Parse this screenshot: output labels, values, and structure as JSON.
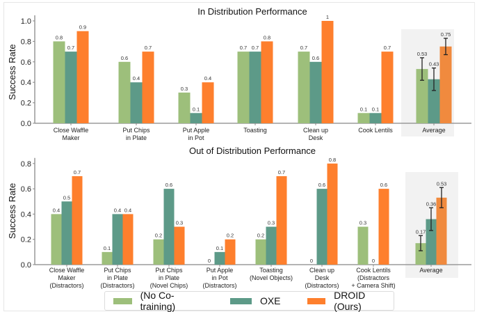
{
  "legend": {
    "items": [
      {
        "label": "(No Co-training)",
        "color": "#9dbf7b"
      },
      {
        "label": "OXE",
        "color": "#5d9a88"
      },
      {
        "label": "DROID (Ours)",
        "color": "#fe7f2d"
      }
    ]
  },
  "chart_data": [
    {
      "type": "bar",
      "title": "In Distribution Performance",
      "xlabel": "",
      "ylabel": "Success Rate",
      "ylim": [
        0,
        1.0
      ],
      "yticks": [
        "0.0",
        "0.2",
        "0.4",
        "0.6",
        "0.8",
        "1.0"
      ],
      "ytick_values": [
        0,
        0.2,
        0.4,
        0.6,
        0.8,
        1.0
      ],
      "grid": false,
      "legend_position": "bottom",
      "categories": [
        [
          "Close Waffle",
          "Maker"
        ],
        [
          "Put Chips",
          "in Plate"
        ],
        [
          "Put Apple",
          "in Pot"
        ],
        [
          "Toasting"
        ],
        [
          "Clean up",
          "Desk"
        ],
        [
          "Cook Lentils"
        ],
        [
          "Average"
        ]
      ],
      "highlight_category": "Average",
      "series": [
        {
          "name": "(No Co-training)",
          "color": "#9dbf7b",
          "values": [
            0.8,
            0.6,
            0.3,
            0.7,
            0.7,
            0.1,
            0.53
          ],
          "labels": [
            "0.8",
            "0.6",
            "0.3",
            "0.7",
            "0.7",
            "0.1",
            "0.53"
          ],
          "error": [
            null,
            null,
            null,
            null,
            null,
            null,
            0.11
          ]
        },
        {
          "name": "OXE",
          "color": "#5d9a88",
          "values": [
            0.7,
            0.4,
            0.1,
            0.7,
            0.6,
            0.1,
            0.43
          ],
          "labels": [
            "0.7",
            "0.4",
            "0.1",
            "0.7",
            "0.6",
            "0.1",
            "0.43"
          ],
          "error": [
            null,
            null,
            null,
            null,
            null,
            null,
            0.11
          ]
        },
        {
          "name": "DROID (Ours)",
          "color": "#fe7f2d",
          "values": [
            0.9,
            0.7,
            0.4,
            0.8,
            1.0,
            0.7,
            0.75
          ],
          "labels": [
            "0.9",
            "0.7",
            "0.4",
            "0.8",
            "1",
            "0.7",
            "0.75"
          ],
          "error": [
            null,
            null,
            null,
            null,
            null,
            null,
            0.08
          ]
        }
      ]
    },
    {
      "type": "bar",
      "title": "Out of Distribution Performance",
      "xlabel": "",
      "ylabel": "Success Rate",
      "ylim": [
        0,
        0.85
      ],
      "yticks": [
        "0.0",
        "0.2",
        "0.4",
        "0.6",
        "0.8"
      ],
      "ytick_values": [
        0,
        0.2,
        0.4,
        0.6,
        0.8
      ],
      "grid": false,
      "legend_position": "bottom",
      "categories": [
        [
          "Close Waffle",
          "Maker",
          "(Distractors)"
        ],
        [
          "Put Chips",
          "in Plate",
          "(Distractors)"
        ],
        [
          "Put Chips",
          "in Plate",
          "(Novel Chips)"
        ],
        [
          "Put Apple",
          "in Pot",
          "(Distractors)"
        ],
        [
          "Toasting",
          "(Novel Objects)"
        ],
        [
          "Clean up",
          "Desk",
          "(Distractors)"
        ],
        [
          "Cook Lentils",
          "(Distractors",
          "+ Camera Shift)"
        ],
        [
          "Average"
        ]
      ],
      "highlight_category": "Average",
      "series": [
        {
          "name": "(No Co-training)",
          "color": "#9dbf7b",
          "values": [
            0.4,
            0.1,
            0.2,
            0,
            0.2,
            0,
            0.3,
            0.17
          ],
          "labels": [
            "0.4",
            "0.1",
            "0.2",
            "0",
            "0.2",
            "0",
            "0.3",
            "0.17"
          ],
          "error": [
            null,
            null,
            null,
            null,
            null,
            null,
            null,
            0.06
          ]
        },
        {
          "name": "OXE",
          "color": "#5d9a88",
          "values": [
            0.5,
            0.4,
            0.6,
            0.1,
            0.3,
            0.6,
            0,
            0.36
          ],
          "labels": [
            "0.5",
            "0.4",
            "0.6",
            "0.1",
            "0.3",
            "0.6",
            "0",
            "0.36"
          ],
          "error": [
            null,
            null,
            null,
            null,
            null,
            null,
            null,
            0.09
          ]
        },
        {
          "name": "DROID (Ours)",
          "color": "#fe7f2d",
          "values": [
            0.7,
            0.4,
            0.3,
            0.2,
            0.7,
            0.8,
            0.6,
            0.53
          ],
          "labels": [
            "0.7",
            "0.4",
            "0.3",
            "0.2",
            "0.7",
            "0.8",
            "0.6",
            "0.53"
          ],
          "error": [
            null,
            null,
            null,
            null,
            null,
            null,
            null,
            0.08
          ]
        }
      ]
    }
  ]
}
